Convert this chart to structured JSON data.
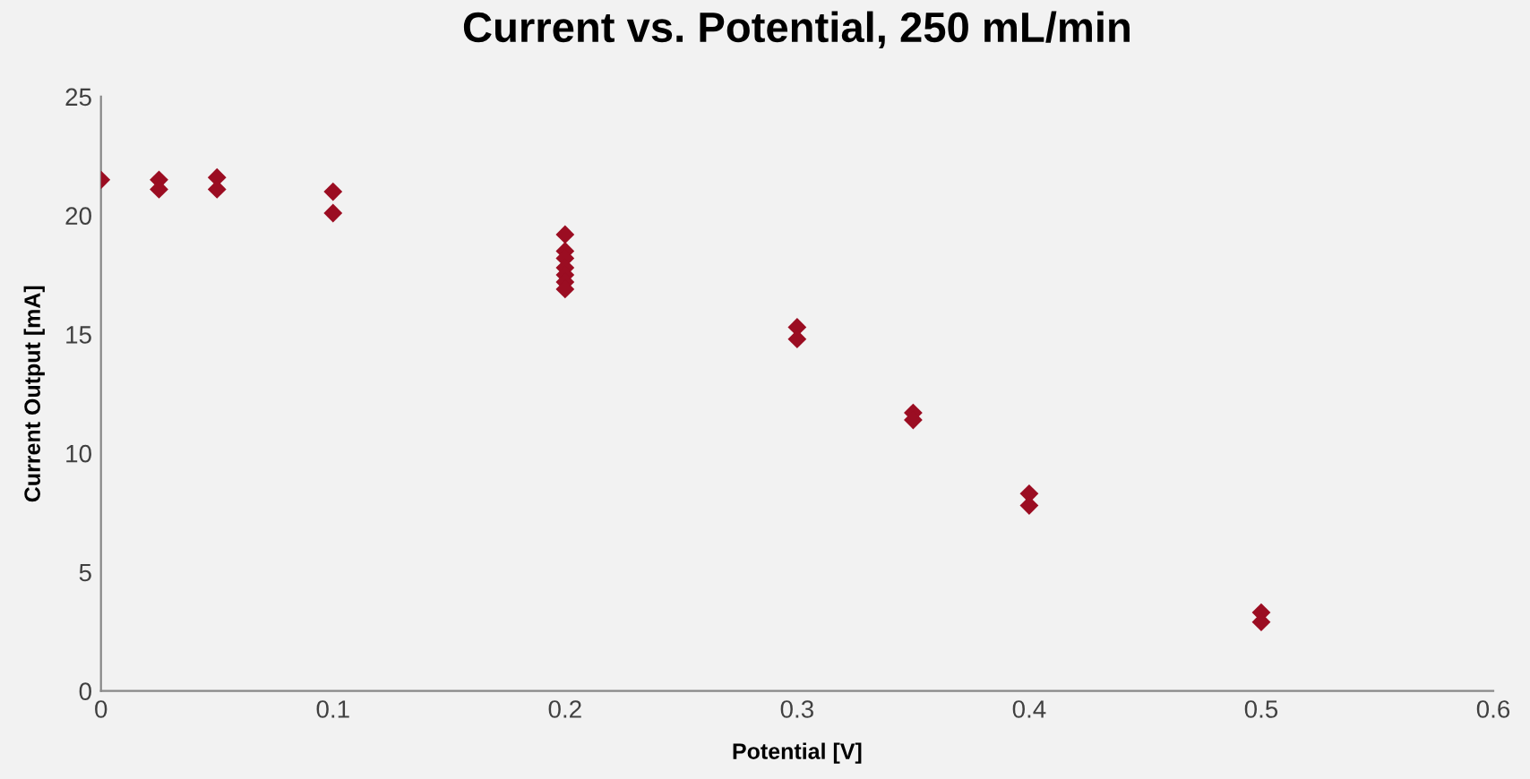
{
  "chart_data": {
    "type": "scatter",
    "title": "Current vs. Potential, 250 mL/min",
    "xlabel": "Potential [V]",
    "ylabel": "Current Output [mA]",
    "series": [
      {
        "color": "#9b0d22",
        "x": [
          0,
          0.025,
          0.025,
          0.05,
          0.05,
          0.1,
          0.1,
          0.2,
          0.2,
          0.2,
          0.2,
          0.2,
          0.2,
          0.2,
          0.3,
          0.3,
          0.35,
          0.35,
          0.4,
          0.4,
          0.5,
          0.5
        ],
        "values": [
          21.5,
          21.5,
          21.1,
          21.6,
          21.1,
          21.0,
          20.1,
          19.2,
          18.5,
          18.2,
          17.8,
          17.5,
          17.2,
          16.9,
          15.3,
          14.8,
          11.7,
          11.4,
          8.3,
          7.8,
          3.3,
          2.9
        ]
      }
    ],
    "xlim": [
      0,
      0.6
    ],
    "xticks": [
      {
        "value": 0,
        "label": "0"
      },
      0.1,
      0.2,
      0.3,
      0.4,
      0.5,
      0.6
    ],
    "ylim": [
      0,
      25
    ],
    "yticks": [
      0,
      5,
      10,
      15,
      20,
      25
    ],
    "marker": "diamond",
    "grid": false,
    "legend": false
  }
}
